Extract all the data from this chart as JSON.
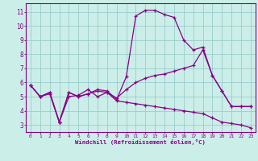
{
  "xlabel": "Windchill (Refroidissement éolien,°C)",
  "bg_color": "#cceee8",
  "line_color": "#880088",
  "grid_color": "#99cccc",
  "xlim": [
    -0.5,
    23.5
  ],
  "ylim": [
    2.5,
    11.6
  ],
  "xticks": [
    0,
    1,
    2,
    3,
    4,
    5,
    6,
    7,
    8,
    9,
    10,
    11,
    12,
    13,
    14,
    15,
    16,
    17,
    18,
    19,
    20,
    21,
    22,
    23
  ],
  "yticks": [
    3,
    4,
    5,
    6,
    7,
    8,
    9,
    10,
    11
  ],
  "line1_x": [
    0,
    1,
    2,
    3,
    4,
    5,
    6,
    7,
    8,
    9,
    10,
    11,
    12,
    13,
    14,
    15,
    16,
    17,
    18,
    19,
    20,
    21,
    22,
    23
  ],
  "line1_y": [
    5.8,
    5.0,
    5.3,
    3.2,
    5.3,
    5.0,
    5.2,
    5.5,
    5.4,
    4.8,
    6.4,
    10.7,
    11.1,
    11.1,
    10.8,
    10.6,
    9.0,
    8.3,
    8.5,
    6.5,
    5.4,
    4.3,
    4.3,
    4.3
  ],
  "line2_x": [
    0,
    1,
    2,
    3,
    4,
    5,
    6,
    7,
    8,
    9,
    10,
    11,
    12,
    13,
    14,
    15,
    16,
    17,
    18,
    19,
    20,
    21,
    22,
    23
  ],
  "line2_y": [
    5.8,
    5.0,
    5.3,
    3.2,
    5.0,
    5.1,
    5.5,
    5.0,
    5.3,
    4.9,
    5.5,
    6.0,
    6.3,
    6.5,
    6.6,
    6.8,
    7.0,
    7.2,
    8.3,
    6.5,
    5.4,
    4.3,
    4.3,
    4.3
  ],
  "line3_x": [
    0,
    1,
    2,
    3,
    4,
    5,
    6,
    7,
    8,
    9,
    10,
    11,
    12,
    13,
    14,
    15,
    16,
    17,
    18,
    19,
    20,
    21,
    22,
    23
  ],
  "line3_y": [
    5.8,
    5.0,
    5.2,
    3.2,
    5.3,
    5.0,
    5.2,
    5.4,
    5.3,
    4.7,
    4.6,
    4.5,
    4.4,
    4.3,
    4.2,
    4.1,
    4.0,
    3.9,
    3.8,
    3.5,
    3.2,
    3.1,
    3.0,
    2.8
  ]
}
